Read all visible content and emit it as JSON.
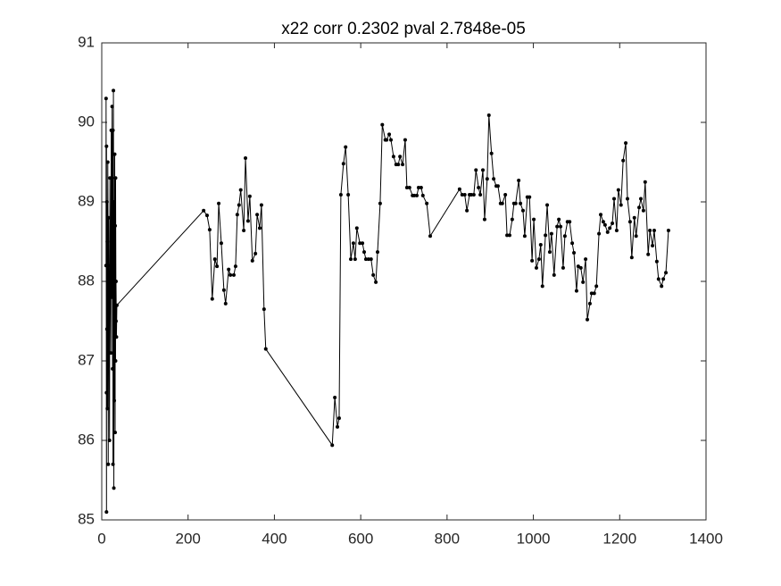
{
  "chart_data": {
    "type": "line",
    "title": "x22 corr 0.2302 pval 2.7848e-05",
    "color": "#000000",
    "x": [
      10,
      10,
      11,
      11,
      11,
      12,
      12,
      13,
      13,
      14,
      15,
      15,
      16,
      17,
      18,
      19,
      20,
      21,
      22,
      23,
      24,
      25,
      26,
      26,
      27,
      27,
      28,
      28,
      29,
      29,
      30,
      30,
      31,
      31,
      32,
      32,
      33,
      33,
      34,
      35,
      236,
      244,
      250,
      256,
      262,
      267,
      271,
      277,
      283,
      287,
      294,
      298,
      306,
      310,
      314,
      318,
      322,
      329,
      333,
      339,
      343,
      349,
      356,
      360,
      366,
      370,
      376,
      380,
      534,
      540,
      546,
      550,
      554,
      560,
      565,
      571,
      577,
      583,
      587,
      591,
      598,
      604,
      608,
      612,
      618,
      624,
      629,
      635,
      639,
      645,
      650,
      657,
      660,
      666,
      670,
      676,
      682,
      687,
      691,
      697,
      703,
      707,
      713,
      720,
      724,
      730,
      734,
      740,
      744,
      753,
      761,
      829,
      835,
      841,
      846,
      852,
      856,
      862,
      867,
      873,
      877,
      883,
      887,
      893,
      897,
      903,
      908,
      914,
      918,
      924,
      928,
      935,
      939,
      945,
      951,
      955,
      959,
      966,
      970,
      976,
      980,
      986,
      991,
      997,
      1001,
      1007,
      1013,
      1017,
      1021,
      1028,
      1032,
      1038,
      1042,
      1048,
      1055,
      1059,
      1063,
      1069,
      1073,
      1079,
      1084,
      1090,
      1094,
      1100,
      1104,
      1110,
      1115,
      1121,
      1125,
      1131,
      1135,
      1141,
      1146,
      1152,
      1156,
      1162,
      1166,
      1172,
      1177,
      1183,
      1187,
      1193,
      1197,
      1203,
      1208,
      1214,
      1218,
      1224,
      1228,
      1234,
      1238,
      1245,
      1249,
      1255,
      1259,
      1266,
      1270,
      1276,
      1280,
      1286,
      1290,
      1297,
      1301,
      1307,
      1313
    ],
    "values": [
      88.2,
      90.3,
      85.1,
      89.7,
      86.6,
      89.0,
      87.4,
      88.5,
      86.4,
      89.5,
      87.9,
      85.7,
      88.8,
      87.6,
      86.0,
      89.3,
      88.2,
      87.1,
      89.9,
      87.8,
      90.2,
      86.9,
      89.9,
      85.7,
      88.4,
      90.4,
      87.3,
      85.4,
      89.0,
      86.5,
      87.8,
      89.6,
      86.1,
      88.7,
      87.0,
      89.3,
      87.5,
      88.0,
      87.3,
      87.7,
      88.89,
      88.83,
      88.65,
      87.78,
      88.28,
      88.19,
      88.98,
      88.48,
      87.89,
      87.72,
      88.15,
      88.08,
      88.08,
      88.19,
      88.84,
      88.96,
      89.15,
      88.64,
      89.55,
      88.76,
      89.07,
      88.26,
      88.35,
      88.84,
      88.67,
      88.96,
      87.65,
      87.15,
      85.94,
      86.54,
      86.17,
      86.28,
      89.09,
      89.48,
      89.69,
      89.09,
      88.28,
      88.48,
      88.28,
      88.67,
      88.48,
      88.48,
      88.37,
      88.28,
      88.28,
      88.28,
      88.08,
      87.99,
      88.37,
      88.98,
      89.97,
      89.78,
      89.78,
      89.85,
      89.78,
      89.57,
      89.47,
      89.47,
      89.57,
      89.47,
      89.78,
      89.18,
      89.18,
      89.08,
      89.08,
      89.08,
      89.18,
      89.18,
      89.08,
      88.98,
      88.57,
      89.16,
      89.09,
      89.09,
      88.89,
      89.09,
      89.09,
      89.09,
      89.4,
      89.18,
      89.09,
      89.4,
      88.78,
      89.29,
      90.09,
      89.61,
      89.29,
      89.2,
      89.2,
      88.98,
      88.98,
      89.09,
      88.58,
      88.58,
      88.78,
      88.98,
      88.98,
      89.27,
      88.98,
      88.89,
      88.57,
      89.06,
      89.06,
      88.26,
      88.78,
      88.17,
      88.28,
      88.46,
      87.94,
      88.58,
      88.96,
      88.37,
      88.6,
      88.08,
      88.69,
      88.78,
      88.69,
      88.17,
      88.57,
      88.75,
      88.75,
      88.48,
      88.36,
      87.88,
      88.19,
      88.17,
      87.99,
      88.28,
      87.52,
      87.72,
      87.85,
      87.85,
      87.94,
      88.6,
      88.84,
      88.75,
      88.71,
      88.62,
      88.67,
      88.73,
      89.04,
      88.64,
      89.15,
      88.96,
      89.52,
      89.74,
      89.04,
      88.75,
      88.3,
      88.8,
      88.57,
      88.93,
      89.04,
      88.89,
      89.25,
      88.34,
      88.64,
      88.45,
      88.64,
      88.25,
      88.03,
      87.94,
      88.03,
      88.11,
      88.64
    ],
    "xlim": [
      0,
      1400
    ],
    "xticks": [
      0,
      200,
      400,
      600,
      800,
      1000,
      1200,
      1400
    ],
    "ylim": [
      85,
      91
    ],
    "yticks": [
      85,
      86,
      87,
      88,
      89,
      90,
      91
    ]
  }
}
